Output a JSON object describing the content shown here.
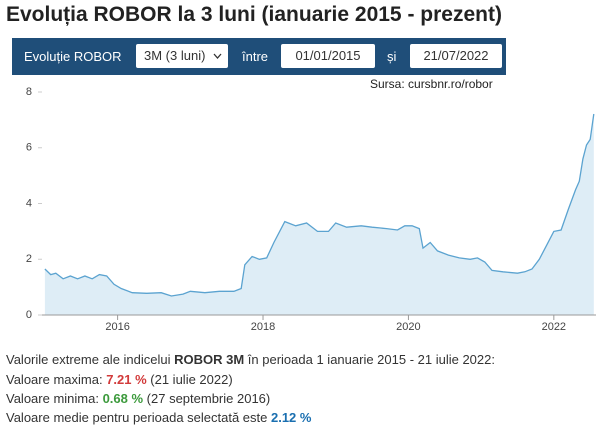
{
  "header": {
    "title": "Evoluția ROBOR la 3 luni (ianuarie 2015 - prezent)"
  },
  "controls": {
    "label": "Evoluție ROBOR",
    "select": "3M (3 luni)",
    "between": "între",
    "start": "01/01/2015",
    "and": "și",
    "end": "21/07/2022"
  },
  "source": "Sursa: cursbnr.ro/robor",
  "chart_data": {
    "type": "area",
    "x": [
      2015.0,
      2015.08,
      2015.15,
      2015.25,
      2015.35,
      2015.45,
      2015.55,
      2015.65,
      2015.75,
      2015.85,
      2015.95,
      2016.05,
      2016.2,
      2016.4,
      2016.6,
      2016.74,
      2016.9,
      2017.0,
      2017.2,
      2017.4,
      2017.6,
      2017.7,
      2017.75,
      2017.85,
      2017.95,
      2018.05,
      2018.15,
      2018.3,
      2018.45,
      2018.6,
      2018.75,
      2018.9,
      2019.0,
      2019.15,
      2019.35,
      2019.5,
      2019.7,
      2019.85,
      2019.95,
      2020.05,
      2020.15,
      2020.2,
      2020.3,
      2020.4,
      2020.55,
      2020.7,
      2020.85,
      2020.95,
      2021.05,
      2021.15,
      2021.3,
      2021.5,
      2021.6,
      2021.7,
      2021.8,
      2021.9,
      2022.0,
      2022.1,
      2022.2,
      2022.3,
      2022.35,
      2022.4,
      2022.45,
      2022.5,
      2022.55
    ],
    "values": [
      1.65,
      1.45,
      1.5,
      1.3,
      1.4,
      1.3,
      1.4,
      1.3,
      1.45,
      1.4,
      1.1,
      0.95,
      0.8,
      0.78,
      0.8,
      0.68,
      0.75,
      0.85,
      0.8,
      0.85,
      0.85,
      0.95,
      1.8,
      2.1,
      2.0,
      2.05,
      2.6,
      3.35,
      3.2,
      3.3,
      3.0,
      3.0,
      3.3,
      3.15,
      3.2,
      3.15,
      3.1,
      3.05,
      3.2,
      3.2,
      3.1,
      2.4,
      2.6,
      2.3,
      2.15,
      2.05,
      2.0,
      2.05,
      1.9,
      1.6,
      1.55,
      1.5,
      1.55,
      1.65,
      2.0,
      2.5,
      3.0,
      3.05,
      3.8,
      4.5,
      4.8,
      5.6,
      6.1,
      6.3,
      7.21
    ],
    "color": "#5ba3d0",
    "xlim": [
      2014.96,
      2022.58
    ],
    "ylim": [
      0,
      8
    ],
    "xticks": [
      2016,
      2018,
      2020,
      2022
    ],
    "yticks": [
      0,
      2,
      4,
      6,
      8
    ],
    "grid": false
  },
  "summary": {
    "intro": {
      "before": "Valorile extreme ale indicelui ",
      "index": "ROBOR 3M",
      "after": " în perioada 1 ianuarie 2015 - 21 iulie 2022:"
    },
    "max": {
      "label": "Valoare maxima: ",
      "value": "7.21 %",
      "date": " (21 iulie 2022)"
    },
    "min": {
      "label": "Valoare minima: ",
      "value": "0.68 %",
      "date": " (27 septembrie 2016)"
    },
    "mean": {
      "label": "Valoare medie pentru perioada selectată este ",
      "value": "2.12 %"
    }
  }
}
